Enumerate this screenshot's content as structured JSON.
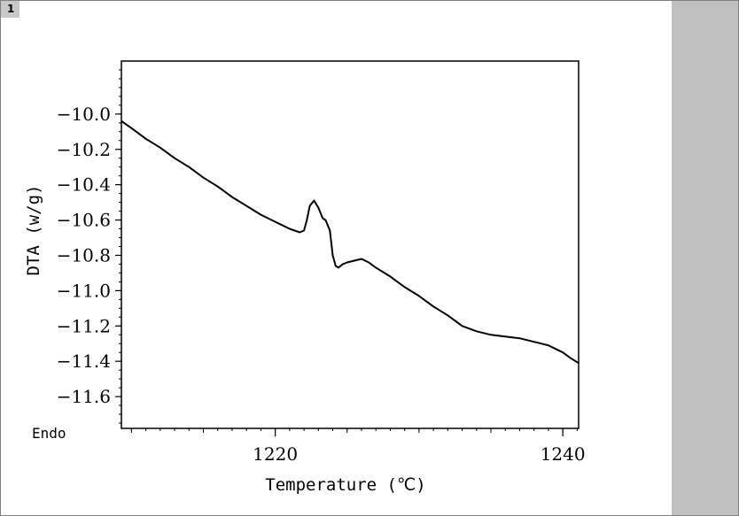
{
  "window": {
    "tab_number": "1"
  },
  "chart_data": {
    "type": "line",
    "title": "",
    "xlabel": "Temperature (℃)",
    "ylabel": "DTA (w/g)",
    "annotation": "Endo",
    "xlim": [
      1209.3,
      1241.1
    ],
    "ylim": [
      -11.78,
      -9.7
    ],
    "x_ticks": [
      1220,
      1240
    ],
    "x_tick_labels": [
      "1220",
      "1240"
    ],
    "y_ticks": [
      -10.0,
      -10.2,
      -10.4,
      -10.6,
      -10.8,
      -11.0,
      -11.2,
      -11.4,
      -11.6
    ],
    "y_tick_labels": [
      "−10.0",
      "−10.2",
      "−10.4",
      "−10.6",
      "−10.8",
      "−11.0",
      "−11.2",
      "−11.4",
      "−11.6"
    ],
    "grid": false,
    "series": [
      {
        "x": [
          1209.3,
          1210.0,
          1211.0,
          1212.0,
          1213.0,
          1214.0,
          1215.0,
          1216.0,
          1217.0,
          1218.0,
          1219.0,
          1220.0,
          1221.0,
          1221.7,
          1222.0,
          1222.2,
          1222.4,
          1222.7,
          1223.0,
          1223.3,
          1223.5,
          1223.8,
          1224.0,
          1224.2,
          1224.4,
          1224.7,
          1225.0,
          1225.5,
          1226.0,
          1226.5,
          1227.0,
          1228.0,
          1229.0,
          1230.0,
          1231.0,
          1232.0,
          1233.0,
          1234.0,
          1235.0,
          1236.0,
          1237.0,
          1238.0,
          1239.0,
          1239.5,
          1240.0,
          1240.5,
          1241.1
        ],
        "y": [
          -10.04,
          -10.08,
          -10.14,
          -10.19,
          -10.25,
          -10.3,
          -10.36,
          -10.41,
          -10.47,
          -10.52,
          -10.57,
          -10.61,
          -10.65,
          -10.67,
          -10.66,
          -10.6,
          -10.52,
          -10.49,
          -10.53,
          -10.59,
          -10.6,
          -10.66,
          -10.8,
          -10.86,
          -10.87,
          -10.85,
          -10.84,
          -10.83,
          -10.82,
          -10.84,
          -10.87,
          -10.92,
          -10.98,
          -11.03,
          -11.09,
          -11.14,
          -11.2,
          -11.23,
          -11.25,
          -11.26,
          -11.27,
          -11.29,
          -11.31,
          -11.33,
          -11.35,
          -11.38,
          -11.41
        ]
      }
    ]
  }
}
